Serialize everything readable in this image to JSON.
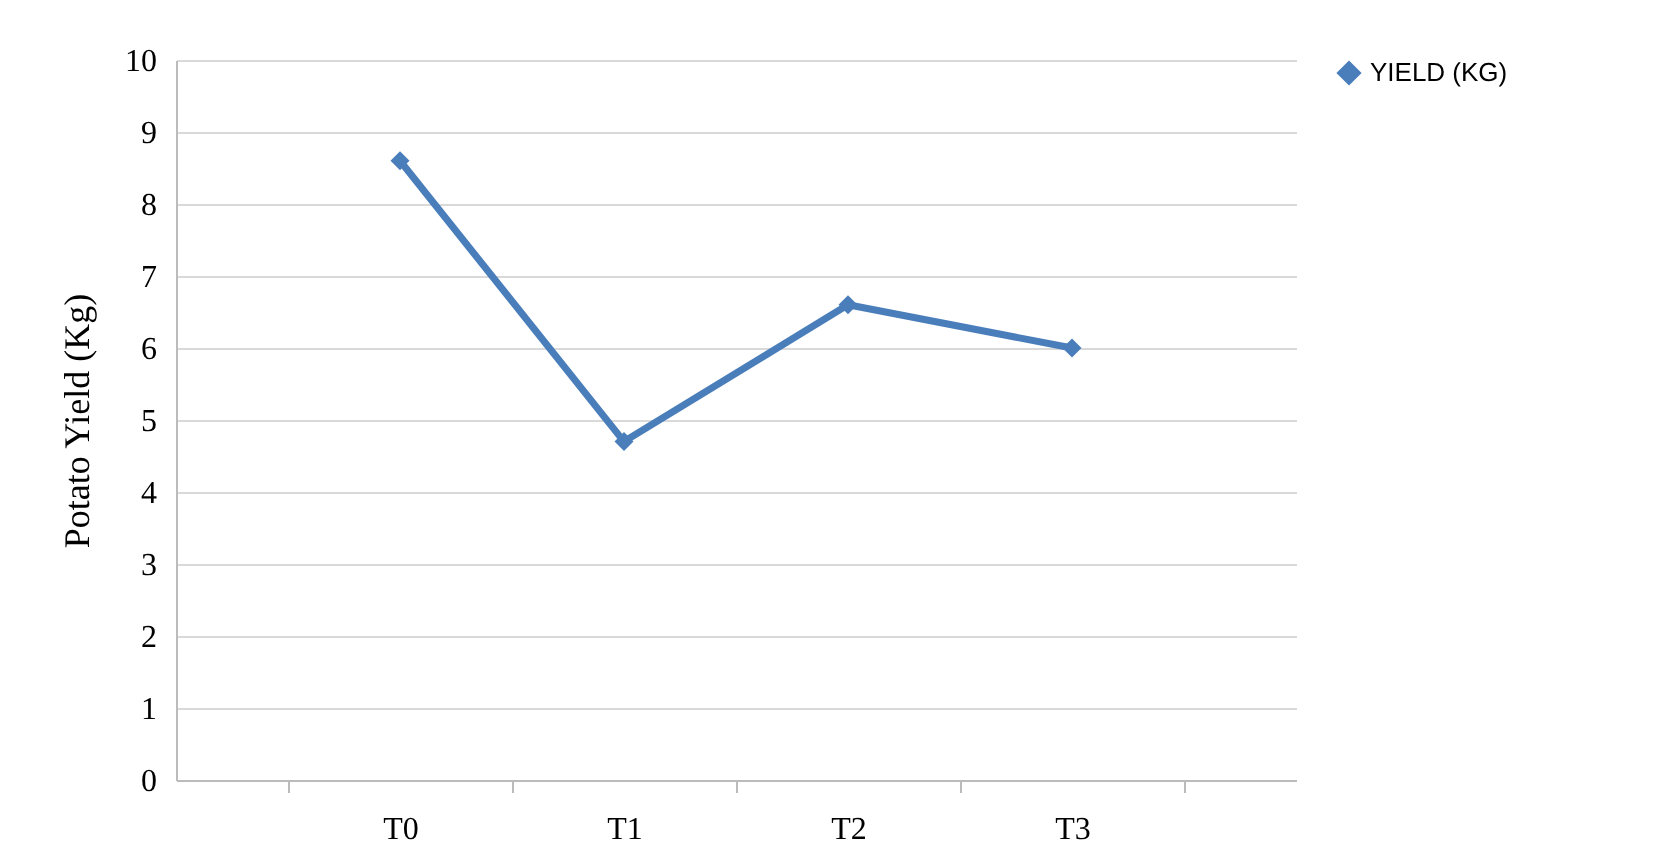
{
  "chart_data": {
    "type": "line",
    "ylabel": "Potato Yield (Kg)",
    "categories": [
      "T0",
      "T1",
      "T2",
      "T3"
    ],
    "series": [
      {
        "name": "YIELD (KG)",
        "color": "#4a7ebb",
        "values": [
          8.6,
          4.7,
          6.6,
          6.0
        ]
      }
    ],
    "ylim": [
      0,
      10
    ],
    "yticks": [
      0,
      1,
      2,
      3,
      4,
      5,
      6,
      7,
      8,
      9,
      10
    ],
    "grid": "y",
    "legend": "right",
    "marker": "diamond",
    "line_style": "solid"
  }
}
